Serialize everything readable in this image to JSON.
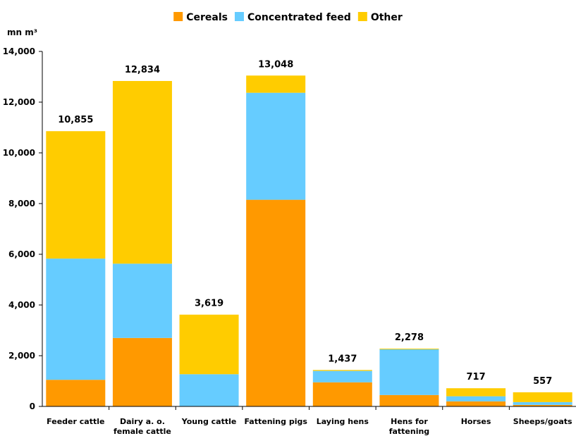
{
  "chart_data": {
    "type": "bar",
    "stacked": true,
    "ylabel": "mn m³",
    "ylim": [
      0,
      14000
    ],
    "yticks": [
      "0",
      "2,000",
      "4,000",
      "6,000",
      "8,000",
      "10,000",
      "12,000",
      "14,000"
    ],
    "ytick_values": [
      0,
      2000,
      4000,
      6000,
      8000,
      10000,
      12000,
      14000
    ],
    "grid": false,
    "legend": "top-center",
    "categories": [
      [
        "Feeder cattle"
      ],
      [
        "Dairy a. o.",
        "female cattle"
      ],
      [
        "Young cattle"
      ],
      [
        "Fattening pigs"
      ],
      [
        "Laying hens"
      ],
      [
        "Hens for",
        "fattening"
      ],
      [
        "Horses"
      ],
      [
        "Sheeps/goats"
      ]
    ],
    "series": [
      {
        "name": "Cereals",
        "color": "#ff9900",
        "values": [
          1050,
          2700,
          0,
          8150,
          950,
          450,
          200,
          60
        ]
      },
      {
        "name": "Concentrated feed",
        "color": "#66ccff",
        "values": [
          4780,
          2930,
          1270,
          4220,
          450,
          1800,
          200,
          110
        ]
      },
      {
        "name": "Other",
        "color": "#ffcc00",
        "values": [
          5025,
          7204,
          2349,
          678,
          37,
          28,
          317,
          387
        ]
      }
    ],
    "totals": [
      "10,855",
      "12,834",
      "3,619",
      "13,048",
      "1,437",
      "2,278",
      "717",
      "557"
    ]
  }
}
